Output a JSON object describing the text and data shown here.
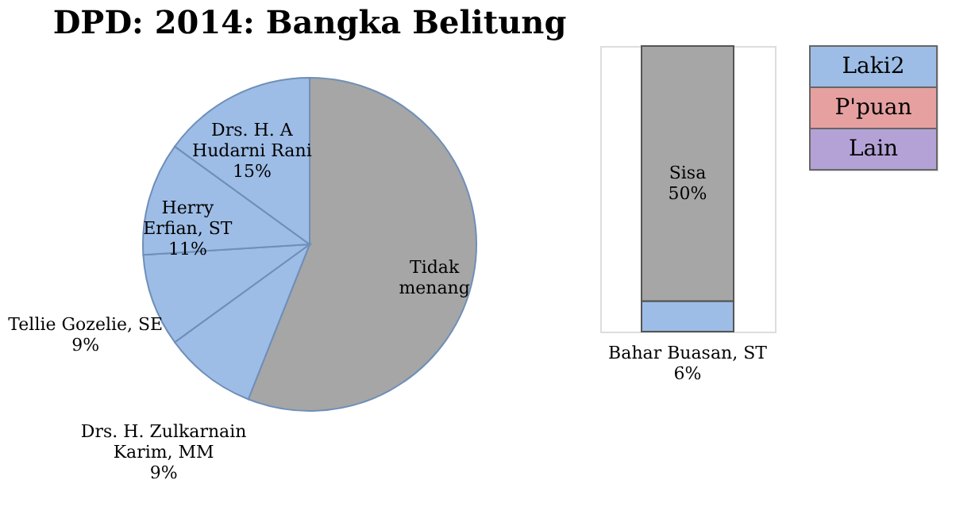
{
  "chart_data": [
    {
      "type": "pie",
      "title": "DPD: 2014: Bangka Belitung",
      "categories": [
        "Tidak\nmenang",
        "Drs. H. Zulkarnain\nKarim, MM",
        "Tellie Gozelie, SE",
        "Herry\nErfian, ST",
        "Drs. H. A\nHudarni Rani"
      ],
      "values": [
        56,
        9,
        9,
        11,
        15
      ],
      "value_labels": [
        null,
        "9%",
        "9%",
        "11%",
        "15%"
      ],
      "colors": [
        "#a6a6a6",
        "#9dbde6",
        "#9dbde6",
        "#9dbde6",
        "#9dbde6"
      ]
    },
    {
      "type": "bar",
      "stacked": true,
      "categories": [
        null
      ],
      "tick_labels": false,
      "series": [
        {
          "name": "Bahar Buasan, ST",
          "color": "#9dbde6",
          "values": [
            6
          ],
          "value_labels": [
            "6%"
          ]
        },
        {
          "name": "Sisa",
          "color": "#a6a6a6",
          "values": [
            50
          ],
          "value_labels": [
            "50%"
          ]
        }
      ]
    },
    {
      "type": "other",
      "categories": [
        "Laki2",
        "P'puan",
        "Lain"
      ],
      "colors": [
        "#9dbde6",
        "#e6a0a0",
        "#b4a2d6"
      ]
    }
  ]
}
